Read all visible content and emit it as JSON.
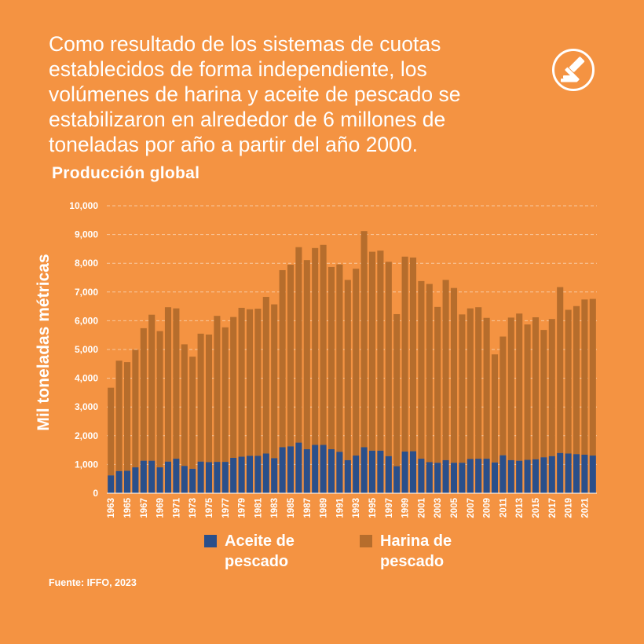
{
  "headline": "Como resultado de los sistemas de cuotas establecidos de forma independiente, los volúmenes de harina y aceite de pescado se estabilizaron en alrededor de 6 millones de toneladas por año a partir del año 2000.",
  "icon": "gavel-icon",
  "source": "Fuente: IFFO, 2023",
  "colors": {
    "background": "#F49342",
    "oil": "#2A4F8A",
    "meal": "#B66D2C",
    "grid": "#F8C9A0"
  },
  "chart_data": {
    "type": "bar",
    "stacked": true,
    "title": "Producción global",
    "ylabel": "Mil toneladas métricas",
    "xlabel": "",
    "ylim": [
      0,
      10000
    ],
    "yticks": [
      0,
      1000,
      2000,
      3000,
      4000,
      5000,
      6000,
      7000,
      8000,
      9000,
      10000
    ],
    "ytick_labels": [
      "0",
      "1,000",
      "2,000",
      "3,000",
      "4,000",
      "5,000",
      "6,000",
      "7,000",
      "8,000",
      "9,000",
      "10,000"
    ],
    "grid": true,
    "legend_position": "bottom",
    "categories": [
      1963,
      1964,
      1965,
      1966,
      1967,
      1968,
      1969,
      1970,
      1971,
      1972,
      1973,
      1974,
      1975,
      1976,
      1977,
      1978,
      1979,
      1980,
      1981,
      1982,
      1983,
      1984,
      1985,
      1986,
      1987,
      1988,
      1989,
      1990,
      1991,
      1992,
      1993,
      1994,
      1995,
      1996,
      1997,
      1998,
      1999,
      2000,
      2001,
      2002,
      2003,
      2004,
      2005,
      2006,
      2007,
      2008,
      2009,
      2010,
      2011,
      2012,
      2013,
      2014,
      2015,
      2016,
      2017,
      2018,
      2019,
      2020,
      2021,
      2022
    ],
    "xtick_labels": [
      "1963",
      "1965",
      "1967",
      "1969",
      "1971",
      "1973",
      "1975",
      "1977",
      "1979",
      "1981",
      "1983",
      "1985",
      "1987",
      "1989",
      "1991",
      "1993",
      "1995",
      "1997",
      "1999",
      "2001",
      "2003",
      "2005",
      "2007",
      "2009",
      "2011",
      "2013",
      "2015",
      "2017",
      "2019",
      "2021"
    ],
    "series": [
      {
        "name": "Aceite de pescado",
        "values": [
          620,
          770,
          780,
          900,
          1130,
          1130,
          900,
          1100,
          1200,
          950,
          850,
          1100,
          1080,
          1090,
          1090,
          1230,
          1270,
          1300,
          1300,
          1380,
          1220,
          1600,
          1630,
          1760,
          1530,
          1680,
          1680,
          1530,
          1440,
          1150,
          1310,
          1600,
          1480,
          1480,
          1290,
          940,
          1450,
          1460,
          1200,
          1080,
          1060,
          1150,
          1060,
          1060,
          1190,
          1200,
          1200,
          1070,
          1320,
          1150,
          1130,
          1160,
          1180,
          1250,
          1290,
          1400,
          1380,
          1360,
          1340,
          1310
        ]
      },
      {
        "name": "Harina de pescado",
        "values": [
          3050,
          3840,
          3780,
          4090,
          4610,
          5080,
          4740,
          5370,
          5230,
          4230,
          3900,
          4450,
          4440,
          5080,
          4680,
          4900,
          5180,
          5100,
          5120,
          5450,
          5350,
          6160,
          6320,
          6800,
          6580,
          6850,
          6960,
          6340,
          6520,
          6270,
          6500,
          7520,
          6920,
          6960,
          6760,
          5290,
          6780,
          6740,
          6180,
          6200,
          5420,
          6270,
          6080,
          5160,
          5240,
          5270,
          4900,
          3760,
          4130,
          4960,
          5120,
          4710,
          4940,
          4430,
          4770,
          5770,
          5000,
          5150,
          5400,
          5450
        ]
      }
    ]
  }
}
